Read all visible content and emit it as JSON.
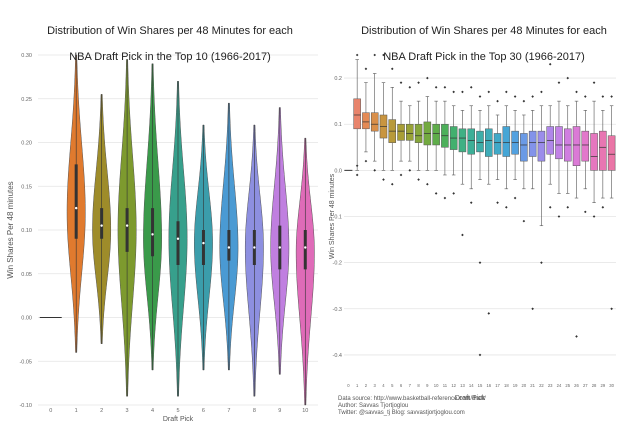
{
  "chart_data": [
    {
      "type": "violin",
      "title": "Distribution of Win Shares per 48 Minutes for each\nNBA Draft Pick in the Top 10 (1966-2017)",
      "xlabel": "Draft Pick",
      "ylabel": "Win Shares Per 48 minutes",
      "ylim": [
        -0.1,
        0.3
      ],
      "yticks": [
        -0.1,
        -0.05,
        0.0,
        0.05,
        0.1,
        0.15,
        0.2,
        0.25,
        0.3
      ],
      "ytick_labels": [
        "-0.10",
        "-0.05",
        "0.00",
        "0.05",
        "0.10",
        "0.15",
        "0.20",
        "0.25",
        "0.30"
      ],
      "grid": true,
      "categories": [
        "0",
        "1",
        "2",
        "3",
        "4",
        "5",
        "6",
        "7",
        "8",
        "9",
        "10"
      ],
      "series": [
        {
          "pick": "0",
          "color": "#ffffff",
          "min": 0.0,
          "q1": 0.0,
          "median": 0.0,
          "q3": 0.0,
          "max": 0.0,
          "mode": 0.0
        },
        {
          "pick": "1",
          "color": "#e07a2e",
          "min": -0.04,
          "q1": 0.09,
          "median": 0.125,
          "q3": 0.175,
          "max": 0.3,
          "mode": 0.12
        },
        {
          "pick": "2",
          "color": "#9e8c2a",
          "min": -0.03,
          "q1": 0.09,
          "median": 0.105,
          "q3": 0.125,
          "max": 0.255,
          "mode": 0.1
        },
        {
          "pick": "3",
          "color": "#7d9a2e",
          "min": -0.09,
          "q1": 0.075,
          "median": 0.105,
          "q3": 0.125,
          "max": 0.295,
          "mode": 0.1
        },
        {
          "pick": "4",
          "color": "#3a9a4a",
          "min": -0.06,
          "q1": 0.07,
          "median": 0.095,
          "q3": 0.125,
          "max": 0.29,
          "mode": 0.09
        },
        {
          "pick": "5",
          "color": "#37a08c",
          "min": -0.09,
          "q1": 0.06,
          "median": 0.09,
          "q3": 0.11,
          "max": 0.27,
          "mode": 0.09
        },
        {
          "pick": "6",
          "color": "#3b9dab",
          "min": -0.06,
          "q1": 0.06,
          "median": 0.085,
          "q3": 0.1,
          "max": 0.22,
          "mode": 0.085
        },
        {
          "pick": "7",
          "color": "#4a9ad3",
          "min": -0.06,
          "q1": 0.065,
          "median": 0.08,
          "q3": 0.1,
          "max": 0.245,
          "mode": 0.08
        },
        {
          "pick": "8",
          "color": "#8d8fe0",
          "min": -0.09,
          "q1": 0.06,
          "median": 0.08,
          "q3": 0.1,
          "max": 0.22,
          "mode": 0.08
        },
        {
          "pick": "9",
          "color": "#c07fe0",
          "min": -0.065,
          "q1": 0.055,
          "median": 0.08,
          "q3": 0.105,
          "max": 0.24,
          "mode": 0.08
        },
        {
          "pick": "10",
          "color": "#df6bb8",
          "min": -0.1,
          "q1": 0.055,
          "median": 0.08,
          "q3": 0.1,
          "max": 0.205,
          "mode": 0.075
        }
      ],
      "title_lines": [
        "Distribution of Win Shares per 48 Minutes for each",
        "NBA Draft Pick in the Top 10 (1966-2017)"
      ]
    },
    {
      "type": "box",
      "title_lines": [
        "Distribution of Win Shares per 48 Minutes for each",
        "NBA Draft Pick in the Top 30 (1966-2017)"
      ],
      "xlabel": "Draft Pick",
      "ylabel": "Win Shares Per 48 minutes",
      "ylim": [
        -0.45,
        0.25
      ],
      "yticks": [
        -0.4,
        -0.3,
        -0.2,
        -0.1,
        0.0,
        0.1,
        0.2
      ],
      "ytick_labels": [
        "-0.4",
        "-0.3",
        "-0.2",
        "-0.1",
        "0.0",
        "0.1",
        "0.2"
      ],
      "grid": true,
      "categories": [
        "0",
        "1",
        "2",
        "3",
        "4",
        "5",
        "6",
        "7",
        "8",
        "9",
        "10",
        "11",
        "12",
        "13",
        "14",
        "15",
        "16",
        "17",
        "18",
        "19",
        "20",
        "21",
        "22",
        "23",
        "24",
        "25",
        "26",
        "27",
        "28",
        "29",
        "30"
      ],
      "series": [
        {
          "pick": "0",
          "color": "#ffffff",
          "q1": 0.0,
          "median": 0.0,
          "q3": 0.0,
          "wlo": 0.0,
          "whi": 0.0,
          "outliers": []
        },
        {
          "pick": "1",
          "color": "#e8846c",
          "q1": 0.09,
          "median": 0.12,
          "q3": 0.155,
          "wlo": 0.0,
          "whi": 0.24,
          "outliers": [
            0.25,
            -0.01,
            0.01
          ]
        },
        {
          "pick": "2",
          "color": "#e48a55",
          "q1": 0.09,
          "median": 0.105,
          "q3": 0.125,
          "wlo": 0.04,
          "whi": 0.19,
          "outliers": [
            0.22,
            0.02
          ]
        },
        {
          "pick": "3",
          "color": "#d98f4a",
          "q1": 0.085,
          "median": 0.1,
          "q3": 0.125,
          "wlo": 0.02,
          "whi": 0.21,
          "outliers": [
            0.25,
            0.0
          ]
        },
        {
          "pick": "4",
          "color": "#c99540",
          "q1": 0.07,
          "median": 0.095,
          "q3": 0.12,
          "wlo": 0.0,
          "whi": 0.19,
          "outliers": [
            0.25,
            -0.02
          ]
        },
        {
          "pick": "5",
          "color": "#b89a3a",
          "q1": 0.06,
          "median": 0.085,
          "q3": 0.11,
          "wlo": 0.0,
          "whi": 0.18,
          "outliers": [
            0.22,
            -0.03
          ]
        },
        {
          "pick": "6",
          "color": "#a89e36",
          "q1": 0.065,
          "median": 0.085,
          "q3": 0.1,
          "wlo": 0.02,
          "whi": 0.15,
          "outliers": [
            0.19,
            -0.01
          ]
        },
        {
          "pick": "7",
          "color": "#98a236",
          "q1": 0.065,
          "median": 0.08,
          "q3": 0.1,
          "wlo": 0.02,
          "whi": 0.14,
          "outliers": [
            0.18,
            0.0
          ]
        },
        {
          "pick": "8",
          "color": "#86a63a",
          "q1": 0.06,
          "median": 0.075,
          "q3": 0.1,
          "wlo": 0.0,
          "whi": 0.15,
          "outliers": [
            0.19,
            -0.02
          ]
        },
        {
          "pick": "9",
          "color": "#73aa40",
          "q1": 0.055,
          "median": 0.08,
          "q3": 0.105,
          "wlo": 0.0,
          "whi": 0.16,
          "outliers": [
            0.2,
            -0.03
          ]
        },
        {
          "pick": "10",
          "color": "#5fad4a",
          "q1": 0.055,
          "median": 0.08,
          "q3": 0.1,
          "wlo": 0.0,
          "whi": 0.15,
          "outliers": [
            0.18,
            -0.05
          ]
        },
        {
          "pick": "11",
          "color": "#4cb05a",
          "q1": 0.05,
          "median": 0.075,
          "q3": 0.1,
          "wlo": -0.01,
          "whi": 0.15,
          "outliers": [
            0.18,
            -0.06
          ]
        },
        {
          "pick": "12",
          "color": "#42b06e",
          "q1": 0.045,
          "median": 0.07,
          "q3": 0.095,
          "wlo": -0.01,
          "whi": 0.14,
          "outliers": [
            0.17,
            -0.05
          ]
        },
        {
          "pick": "13",
          "color": "#3fb084",
          "q1": 0.04,
          "median": 0.07,
          "q3": 0.09,
          "wlo": -0.03,
          "whi": 0.13,
          "outliers": [
            0.17,
            -0.14
          ]
        },
        {
          "pick": "14",
          "color": "#3daf97",
          "q1": 0.035,
          "median": 0.065,
          "q3": 0.09,
          "wlo": -0.04,
          "whi": 0.14,
          "outliers": [
            0.18,
            -0.07
          ]
        },
        {
          "pick": "15",
          "color": "#3daea8",
          "q1": 0.04,
          "median": 0.06,
          "q3": 0.085,
          "wlo": -0.02,
          "whi": 0.13,
          "outliers": [
            0.16,
            -0.2,
            -0.4
          ]
        },
        {
          "pick": "16",
          "color": "#3eacb8",
          "q1": 0.03,
          "median": 0.065,
          "q3": 0.09,
          "wlo": -0.03,
          "whi": 0.14,
          "outliers": [
            0.17,
            -0.31
          ]
        },
        {
          "pick": "17",
          "color": "#40a9c8",
          "q1": 0.035,
          "median": 0.06,
          "q3": 0.08,
          "wlo": -0.02,
          "whi": 0.12,
          "outliers": [
            0.15,
            -0.07
          ]
        },
        {
          "pick": "18",
          "color": "#45a6d6",
          "q1": 0.03,
          "median": 0.06,
          "q3": 0.095,
          "wlo": -0.04,
          "whi": 0.14,
          "outliers": [
            0.17,
            -0.08
          ]
        },
        {
          "pick": "19",
          "color": "#52a1e0",
          "q1": 0.035,
          "median": 0.06,
          "q3": 0.085,
          "wlo": -0.02,
          "whi": 0.13,
          "outliers": [
            0.16,
            -0.06
          ]
        },
        {
          "pick": "20",
          "color": "#6a9ae6",
          "q1": 0.02,
          "median": 0.055,
          "q3": 0.08,
          "wlo": -0.04,
          "whi": 0.12,
          "outliers": [
            0.15,
            -0.11
          ]
        },
        {
          "pick": "21",
          "color": "#8393ea",
          "q1": 0.03,
          "median": 0.06,
          "q3": 0.085,
          "wlo": -0.04,
          "whi": 0.13,
          "outliers": [
            0.16,
            -0.3
          ]
        },
        {
          "pick": "22",
          "color": "#9b8deb",
          "q1": 0.02,
          "median": 0.06,
          "q3": 0.085,
          "wlo": -0.12,
          "whi": 0.14,
          "outliers": [
            0.17,
            -0.2
          ]
        },
        {
          "pick": "23",
          "color": "#b087ea",
          "q1": 0.035,
          "median": 0.065,
          "q3": 0.095,
          "wlo": -0.03,
          "whi": 0.14,
          "outliers": [
            0.23,
            -0.08
          ]
        },
        {
          "pick": "24",
          "color": "#c282e6",
          "q1": 0.025,
          "median": 0.055,
          "q3": 0.095,
          "wlo": -0.05,
          "whi": 0.15,
          "outliers": [
            0.19,
            -0.1
          ]
        },
        {
          "pick": "25",
          "color": "#d07ee0",
          "q1": 0.02,
          "median": 0.055,
          "q3": 0.09,
          "wlo": -0.05,
          "whi": 0.14,
          "outliers": [
            0.2,
            -0.08
          ]
        },
        {
          "pick": "26",
          "color": "#db7ad6",
          "q1": 0.01,
          "median": 0.055,
          "q3": 0.095,
          "wlo": -0.06,
          "whi": 0.15,
          "outliers": [
            0.17,
            -0.36
          ]
        },
        {
          "pick": "27",
          "color": "#e278cb",
          "q1": 0.02,
          "median": 0.055,
          "q3": 0.085,
          "wlo": -0.04,
          "whi": 0.13,
          "outliers": [
            0.16,
            -0.09
          ]
        },
        {
          "pick": "28",
          "color": "#e677bf",
          "q1": 0.0,
          "median": 0.03,
          "q3": 0.08,
          "wlo": -0.07,
          "whi": 0.15,
          "outliers": [
            0.19,
            -0.1
          ]
        },
        {
          "pick": "29",
          "color": "#e876b2",
          "q1": 0.0,
          "median": 0.05,
          "q3": 0.085,
          "wlo": -0.06,
          "whi": 0.13,
          "outliers": [
            0.16,
            -0.08
          ]
        },
        {
          "pick": "30",
          "color": "#ea75a6",
          "q1": 0.0,
          "median": 0.035,
          "q3": 0.075,
          "wlo": -0.06,
          "whi": 0.14,
          "outliers": [
            0.16,
            -0.3
          ]
        }
      ],
      "source_lines": [
        "Data source: http://www.basketball-reference.com/draft/",
        "Author: Savvas Tjortjoglou",
        "Twitter: @savvas_tj  Blog: savvastjortjoglou.com"
      ]
    }
  ]
}
